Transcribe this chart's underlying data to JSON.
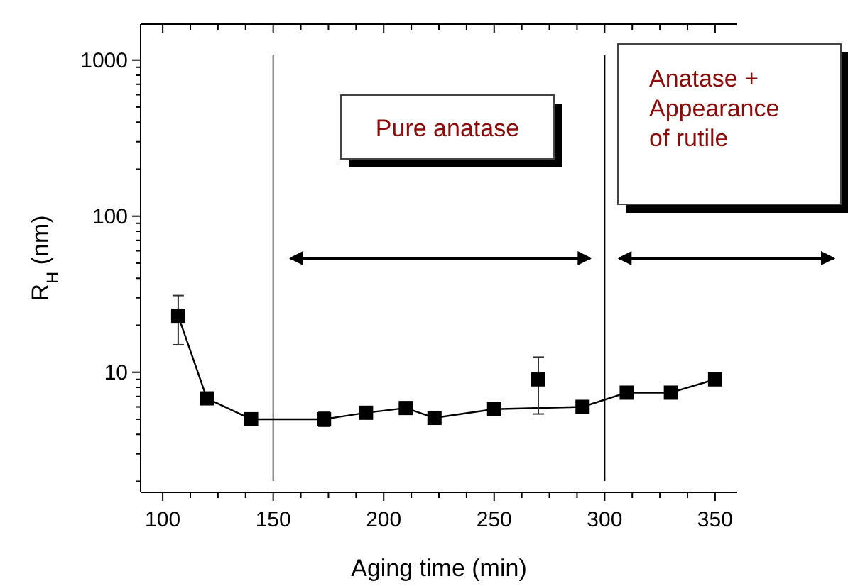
{
  "chart_data": {
    "type": "line",
    "xlabel": "Aging time (min)",
    "ylabel": "R$_{H}$ (nm)",
    "series": [
      {
        "color": "#000000",
        "x": [
          107,
          120,
          140,
          173,
          192,
          210,
          223,
          250,
          290,
          310,
          330,
          350
        ],
        "values": [
          23,
          6.8,
          5.0,
          5.0,
          5.5,
          5.9,
          5.1,
          5.8,
          6.0,
          7.4,
          7.4,
          9.0
        ],
        "errors": [
          [
            15,
            31
          ],
          null,
          null,
          [
            4.5,
            5.6
          ],
          null,
          null,
          null,
          null,
          null,
          null,
          null,
          null
        ]
      },
      {
        "type": "scatter",
        "color": "#000000",
        "x": [
          270
        ],
        "values": [
          9
        ],
        "errors": [
          [
            5.4,
            12.5
          ]
        ]
      }
    ],
    "marker": "square",
    "log": "y",
    "xlim": [
      90,
      360
    ],
    "xticks": [
      100,
      {
        "value": 112.5,
        "label": null
      },
      {
        "value": 125,
        "label": null
      },
      {
        "value": 137.5,
        "label": null
      },
      150,
      {
        "value": 162.5,
        "label": null
      },
      {
        "value": 175,
        "label": null
      },
      {
        "value": 187.5,
        "label": null
      },
      200,
      {
        "value": 212.5,
        "label": null
      },
      {
        "value": 225,
        "label": null
      },
      {
        "value": 237.5,
        "label": null
      },
      250,
      {
        "value": 262.5,
        "label": null
      },
      {
        "value": 275,
        "label": null
      },
      {
        "value": 287.5,
        "label": null
      },
      300,
      {
        "value": 312.5,
        "label": null
      },
      {
        "value": 325,
        "label": null
      },
      {
        "value": 337.5,
        "label": null
      },
      350
    ],
    "ylim": [
      1.7,
      1700
    ],
    "yticks": [
      {
        "value": 2,
        "label": null
      },
      {
        "value": 3,
        "label": null
      },
      {
        "value": 4,
        "label": null
      },
      {
        "value": 5,
        "label": null
      },
      {
        "value": 6,
        "label": null
      },
      {
        "value": 7,
        "label": null
      },
      {
        "value": 8,
        "label": null
      },
      {
        "value": 9,
        "label": null
      },
      10,
      {
        "value": 20,
        "label": null
      },
      {
        "value": 30,
        "label": null
      },
      {
        "value": 40,
        "label": null
      },
      {
        "value": 50,
        "label": null
      },
      {
        "value": 60,
        "label": null
      },
      {
        "value": 70,
        "label": null
      },
      {
        "value": 80,
        "label": null
      },
      {
        "value": 90,
        "label": null
      },
      100,
      {
        "value": 200,
        "label": null
      },
      {
        "value": 300,
        "label": null
      },
      {
        "value": 400,
        "label": null
      },
      {
        "value": 500,
        "label": null
      },
      {
        "value": 600,
        "label": null
      },
      {
        "value": 700,
        "label": null
      },
      {
        "value": 800,
        "label": null
      },
      {
        "value": 900,
        "label": null
      },
      1000
    ],
    "ref_lines": [
      {
        "axis": "x",
        "value": 150,
        "color": "#555555"
      },
      {
        "axis": "x",
        "value": 300,
        "color": "#000000"
      }
    ],
    "annotations": [
      "Pure anatase",
      "Anatase +\nAppearance\nof rutile"
    ]
  }
}
